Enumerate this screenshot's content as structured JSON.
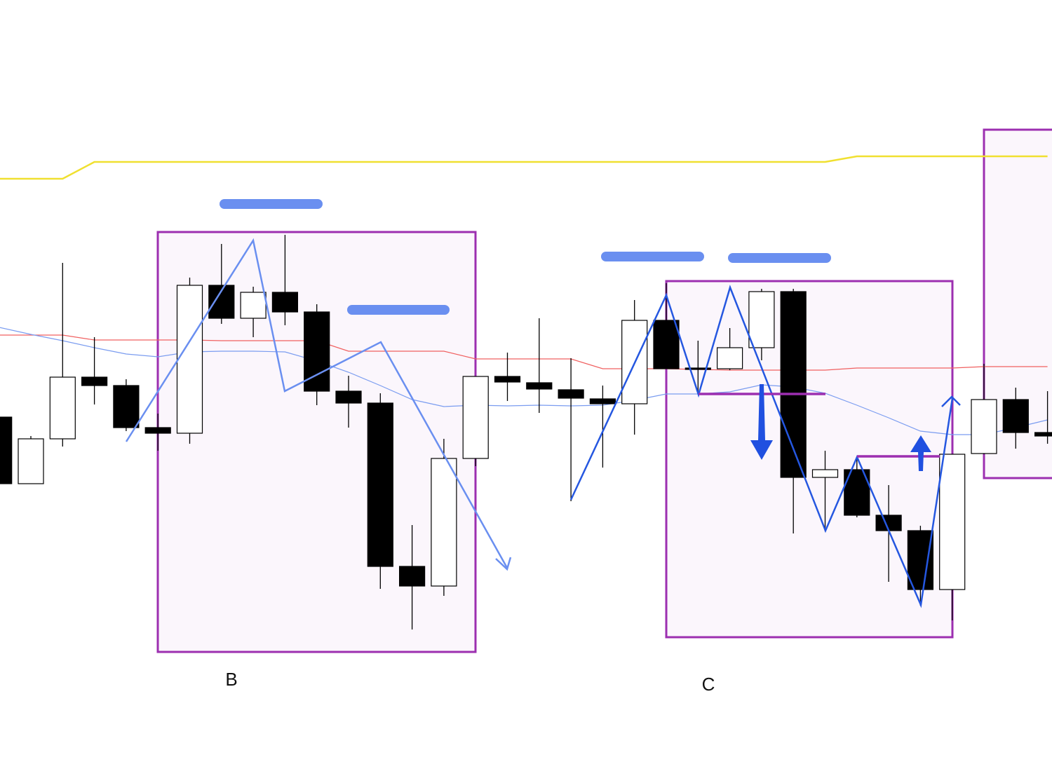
{
  "chart_data": {
    "type": "candlestick",
    "ylim": [
      0,
      1107
    ],
    "annotations": [
      "B",
      "C"
    ],
    "up_color": "#ffffff",
    "down_color": "#000000",
    "open": [
      512,
      417,
      481,
      569,
      557,
      497,
      489,
      700,
      653,
      690,
      662,
      549,
      532,
      299,
      271,
      453,
      570,
      561,
      551,
      538,
      531,
      650,
      582,
      581,
      611,
      691,
      426,
      437,
      372,
      350,
      266,
      460,
      537,
      490
    ],
    "high": [
      512,
      485,
      732,
      626,
      566,
      517,
      711,
      759,
      698,
      772,
      673,
      571,
      546,
      358,
      481,
      570,
      604,
      653,
      596,
      557,
      679,
      703,
      621,
      639,
      695,
      695,
      464,
      456,
      415,
      357,
      459,
      588,
      554,
      549
    ],
    "low": [
      417,
      417,
      470,
      530,
      492,
      464,
      474,
      645,
      626,
      643,
      529,
      497,
      267,
      209,
      257,
      442,
      535,
      518,
      392,
      440,
      487,
      581,
      545,
      579,
      593,
      346,
      349,
      369,
      277,
      243,
      222,
      459,
      467,
      474
    ],
    "close": [
      417,
      481,
      569,
      557,
      497,
      489,
      700,
      653,
      690,
      662,
      549,
      532,
      299,
      271,
      453,
      570,
      562,
      552,
      539,
      531,
      650,
      581,
      580,
      611,
      691,
      426,
      437,
      372,
      350,
      266,
      459,
      537,
      490,
      485
    ],
    "lines": [
      {
        "color": "#f0e030",
        "width": 2.5,
        "values": [
          852,
          852,
          852,
          876,
          876,
          876,
          876,
          876,
          876,
          876,
          876,
          876,
          876,
          876,
          876,
          876,
          876,
          876,
          876,
          876,
          876,
          876,
          876,
          876,
          876,
          876,
          876,
          884,
          884,
          884,
          884,
          884,
          884,
          884
        ]
      },
      {
        "color": "#f06060",
        "width": 1.2,
        "values": [
          629,
          629,
          629,
          622,
          622,
          622,
          622,
          621,
          621,
          621,
          621,
          606,
          606,
          606,
          606,
          595,
          595,
          595,
          595,
          581,
          581,
          581,
          580,
          579,
          579,
          579,
          579,
          582,
          582,
          582,
          582,
          584,
          584,
          584
        ]
      },
      {
        "color": "#7a9cf0",
        "width": 1.2,
        "values": [
          640,
          630,
          621,
          611,
          602,
          598,
          605,
          606,
          606,
          605,
          592,
          576,
          557,
          537,
          527,
          529,
          528,
          529,
          528,
          529,
          536,
          545,
          545,
          548,
          558,
          555,
          546,
          529,
          511,
          492,
          487,
          487,
          497,
          508
        ]
      }
    ]
  }
}
